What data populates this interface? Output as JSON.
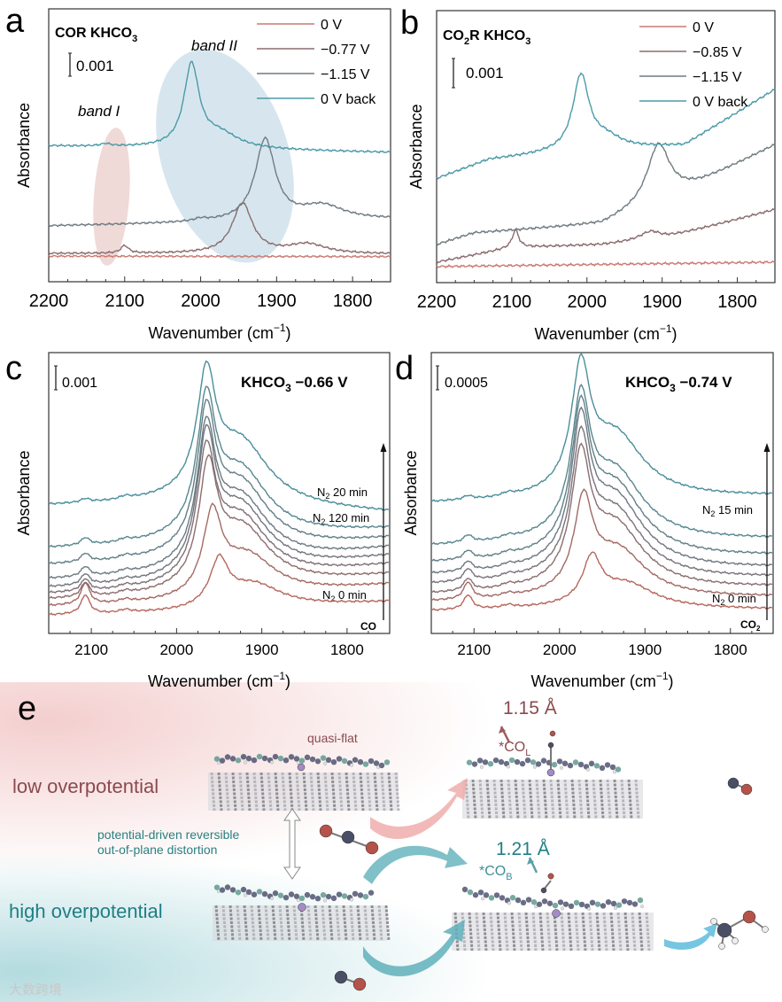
{
  "panels": {
    "a": "a",
    "b": "b",
    "c": "c",
    "d": "d",
    "e": "e"
  },
  "chart_data": [
    {
      "panel": "a",
      "type": "line",
      "title": {
        "main": "COR KHCO",
        "sub": "3"
      },
      "xlabel": {
        "main": "Wavenumber (cm",
        "sup": "−1",
        "end": ")"
      },
      "ylabel": "Absorbance",
      "xlim": [
        2200,
        1750
      ],
      "ylim": [
        0,
        11.4
      ],
      "xticks": [
        "2200",
        "2100",
        "2000",
        "1900",
        "1800"
      ],
      "scale_bar": "0.001",
      "annotations": [
        "band I",
        "band II"
      ],
      "legend_position": "top-right",
      "series": [
        {
          "name": "0 V",
          "color": "#c97a72",
          "baseline": [
            [
              2200,
              1.07
            ],
            [
              1750,
              1.05
            ]
          ],
          "peaks": []
        },
        {
          "name": "−0.77 V",
          "color": "#8b6b6e",
          "baseline": [
            [
              2200,
              1.18
            ],
            [
              1750,
              1.15
            ]
          ],
          "peaks": [
            [
              2100,
              0.32,
              6
            ],
            [
              1945,
              2.1,
              16
            ],
            [
              1860,
              0.4,
              30
            ]
          ]
        },
        {
          "name": "−1.15 V",
          "color": "#6f7b80",
          "baseline": [
            [
              2200,
              2.33
            ],
            [
              1750,
              2.6
            ]
          ],
          "peaks": [
            [
              2000,
              0.1,
              10
            ],
            [
              1915,
              3.4,
              16
            ],
            [
              1840,
              0.6,
              35
            ]
          ]
        },
        {
          "name": "0 V back",
          "color": "#4b9aa8",
          "baseline": [
            [
              2200,
              5.67
            ],
            [
              1750,
              5.4
            ]
          ],
          "peaks": [
            [
              2125,
              0.1,
              8
            ],
            [
              2012,
              3.4,
              12
            ],
            [
              1975,
              0.6,
              30
            ]
          ]
        }
      ]
    },
    {
      "panel": "b",
      "type": "line",
      "title": {
        "pre": "CO",
        "sub1": "2",
        "main": "R KHCO",
        "sub": "3"
      },
      "xlabel": {
        "main": "Wavenumber (cm",
        "sup": "−1",
        "end": ")"
      },
      "ylabel": "Absorbance",
      "xlim": [
        2200,
        1750
      ],
      "ylim": [
        0,
        9.3
      ],
      "xticks": [
        "2200",
        "2100",
        "2000",
        "1900",
        "1800"
      ],
      "scale_bar": "0.001",
      "legend_position": "top-right",
      "series": [
        {
          "name": "0 V",
          "color": "#c97a72",
          "baseline": [
            [
              2200,
              0.55
            ],
            [
              1750,
              0.7
            ]
          ],
          "peaks": []
        },
        {
          "name": "−0.85 V",
          "color": "#8b6b6e",
          "baseline": [
            [
              2200,
              0.7
            ],
            [
              2100,
              1.2
            ],
            [
              1980,
              1.3
            ],
            [
              1900,
              1.5
            ],
            [
              1750,
              2.5
            ]
          ],
          "peaks": [
            [
              2095,
              0.6,
              5
            ],
            [
              1915,
              0.3,
              18
            ]
          ]
        },
        {
          "name": "−1.15 V",
          "color": "#6f7b80",
          "baseline": [
            [
              2200,
              1.3
            ],
            [
              2150,
              1.7
            ],
            [
              1980,
              2.0
            ],
            [
              1850,
              3.4
            ],
            [
              1750,
              4.7
            ]
          ],
          "peaks": [
            [
              1905,
              1.95,
              18
            ]
          ]
        },
        {
          "name": "0 V back",
          "color": "#4b9aa8",
          "baseline": [
            [
              2200,
              3.55
            ],
            [
              2130,
              4.2
            ],
            [
              2050,
              4.4
            ],
            [
              1870,
              4.7
            ],
            [
              1750,
              6.6
            ]
          ],
          "peaks": [
            [
              2008,
              2.55,
              13
            ],
            [
              1975,
              0.4,
              25
            ]
          ]
        }
      ]
    },
    {
      "panel": "c",
      "type": "line",
      "title": {
        "main": "KHCO",
        "sub": "3",
        "end": " −0.66 V"
      },
      "xlabel": {
        "main": "Wavenumber (cm",
        "sup": "−1",
        "end": ")"
      },
      "ylabel": "Absorbance",
      "xlim": [
        2150,
        1750
      ],
      "ylim": [
        0,
        11.7
      ],
      "xticks": [
        "2100",
        "2000",
        "1900",
        "1800"
      ],
      "scale_bar": "0.001",
      "arrow_label": "CO",
      "labels": [
        {
          "main": "N",
          "sub": "2",
          "end": " 120 min"
        },
        {
          "main": "N",
          "sub": "2",
          "end": " 20 min"
        },
        {
          "main": "N",
          "sub": "2",
          "end": " 0 min"
        }
      ],
      "series": [
        {
          "name": "N2 0 min",
          "color": "#b5675c",
          "start": 0.74,
          "end": 1.3,
          "p2100": 0.8,
          "main_c": 1950,
          "main_h": 1.85
        },
        {
          "name": "",
          "color": "#a46a64",
          "start": 1.1,
          "end": 2.0,
          "p2100": 0.9,
          "main_c": 1958,
          "main_h": 3.2
        },
        {
          "name": "",
          "color": "#8e6d6e",
          "start": 1.37,
          "end": 2.4,
          "p2100": 0.6,
          "main_c": 1963,
          "main_h": 4.6
        },
        {
          "name": "",
          "color": "#7e7177",
          "start": 1.6,
          "end": 2.8,
          "p2100": 0.5,
          "main_c": 1965,
          "main_h": 4.9
        },
        {
          "name": "",
          "color": "#74767e",
          "start": 1.85,
          "end": 3.15,
          "p2100": 0.45,
          "main_c": 1965,
          "main_h": 5.2
        },
        {
          "name": "",
          "color": "#6c7a82",
          "start": 2.2,
          "end": 3.5,
          "p2100": 0.4,
          "main_c": 1965,
          "main_h": 5.2
        },
        {
          "name": "",
          "color": "#638087",
          "start": 2.8,
          "end": 3.9,
          "p2100": 0.35,
          "main_c": 1965,
          "main_h": 5.3
        },
        {
          "name": "N2 20 min",
          "color": "#58878f",
          "start": 3.5,
          "end": 4.3,
          "p2100": 0.3,
          "main_c": 1965,
          "main_h": 5.2
        },
        {
          "name": "N2 120 min",
          "color": "#4a8e9b",
          "start": 5.3,
          "end": 5.0,
          "p2100": 0.15,
          "main_c": 1965,
          "main_h": 4.7
        }
      ]
    },
    {
      "panel": "d",
      "type": "line",
      "title": {
        "main": "KHCO",
        "sub": "3",
        "end": " −0.74 V"
      },
      "xlabel": {
        "main": "Wavenumber (cm",
        "sup": "−1",
        "end": ")"
      },
      "ylabel": "Absorbance",
      "xlim": [
        2150,
        1750
      ],
      "ylim": [
        0,
        11.7
      ],
      "xticks": [
        "2100",
        "2000",
        "1900",
        "1800"
      ],
      "scale_bar": "0.0005",
      "arrow_label": {
        "main": "CO",
        "sub": "2"
      },
      "labels": [
        {
          "main": "N",
          "sub": "2",
          "end": " 15 min"
        },
        {
          "main": "N",
          "sub": "2",
          "end": " 0 min"
        }
      ],
      "series": [
        {
          "name": "N2 0 min",
          "color": "#b5675c",
          "start": 0.93,
          "end": 1.0,
          "p2100": 0.6,
          "main_c": 1962,
          "main_h": 1.85
        },
        {
          "name": "",
          "color": "#a16a65",
          "start": 1.3,
          "end": 1.5,
          "p2100": 0.7,
          "main_c": 1972,
          "main_h": 3.6
        },
        {
          "name": "",
          "color": "#8a6e70",
          "start": 1.6,
          "end": 1.9,
          "p2100": 0.5,
          "main_c": 1975,
          "main_h": 4.85
        },
        {
          "name": "",
          "color": "#7a737a",
          "start": 2.0,
          "end": 2.3,
          "p2100": 0.5,
          "main_c": 1975,
          "main_h": 5.1
        },
        {
          "name": "",
          "color": "#6e7880",
          "start": 2.4,
          "end": 2.7,
          "p2100": 0.4,
          "main_c": 1975,
          "main_h": 5.4
        },
        {
          "name": "",
          "color": "#637f87",
          "start": 2.9,
          "end": 3.2,
          "p2100": 0.35,
          "main_c": 1975,
          "main_h": 5.4
        },
        {
          "name": "",
          "color": "#578790",
          "start": 3.6,
          "end": 3.9,
          "p2100": 0.3,
          "main_c": 1975,
          "main_h": 5.2
        },
        {
          "name": "N2 15 min",
          "color": "#4a8e9b",
          "start": 5.4,
          "end": 5.7,
          "p2100": 0.15,
          "main_c": 1975,
          "main_h": 4.8
        }
      ]
    }
  ],
  "diagram": {
    "quasi_flat": "quasi-flat",
    "low": "low overpotential",
    "high": "high overpotential",
    "distortion_1": "potential-driven reversible",
    "distortion_2": "out-of-plane distortion",
    "bond_L": "1.15 Å",
    "bond_B": "1.21 Å",
    "co_L": {
      "main": "*CO",
      "sub": "L"
    },
    "co_B": {
      "main": "*CO",
      "sub": "B"
    },
    "watermark": "大数跨境",
    "colors": {
      "low": "#8a4a4f",
      "high": "#1f7f86",
      "oxygen": "#b5524a",
      "carbon": "#4a4f66"
    }
  }
}
